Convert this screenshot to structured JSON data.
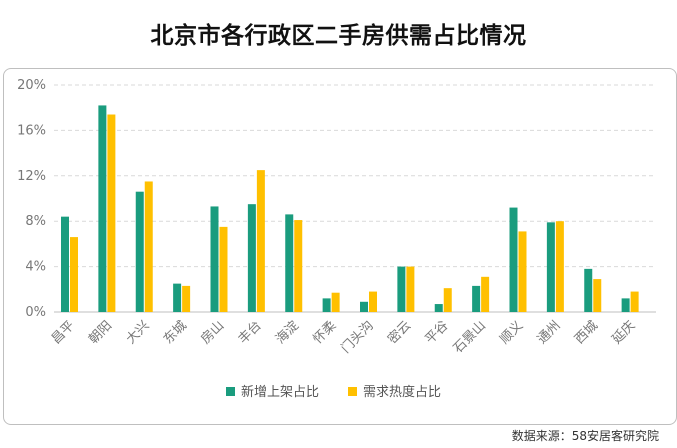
{
  "page": {
    "title": "北京市各行政区二手房供需占比情况",
    "source": "数据来源：58安居客研究院"
  },
  "chart_data": {
    "type": "bar",
    "title": "北京市各行政区二手房供需占比情况",
    "categories": [
      "昌平",
      "朝阳",
      "大兴",
      "东城",
      "房山",
      "丰台",
      "海淀",
      "怀柔",
      "门头沟",
      "密云",
      "平谷",
      "石景山",
      "顺义",
      "通州",
      "西城",
      "延庆"
    ],
    "series": [
      {
        "name": "新增上架占比",
        "color": "#1a9c7e",
        "values": [
          8.4,
          18.2,
          10.6,
          2.5,
          9.3,
          9.5,
          8.6,
          1.2,
          0.9,
          4.0,
          0.7,
          2.3,
          9.2,
          7.9,
          3.8,
          1.2
        ]
      },
      {
        "name": "需求热度占比",
        "color": "#ffc000",
        "values": [
          6.6,
          17.4,
          11.5,
          2.3,
          7.5,
          12.5,
          8.1,
          1.7,
          1.8,
          4.0,
          2.1,
          3.1,
          7.1,
          8.0,
          2.9,
          1.8
        ]
      }
    ],
    "ylim": [
      0,
      20
    ],
    "yticks": [
      0,
      4,
      8,
      12,
      16,
      20
    ],
    "ytick_labels": [
      "0%",
      "4%",
      "8%",
      "12%",
      "16%",
      "20%"
    ],
    "xlabel": "",
    "ylabel": "",
    "grid": true,
    "legend": "bottom-center"
  }
}
